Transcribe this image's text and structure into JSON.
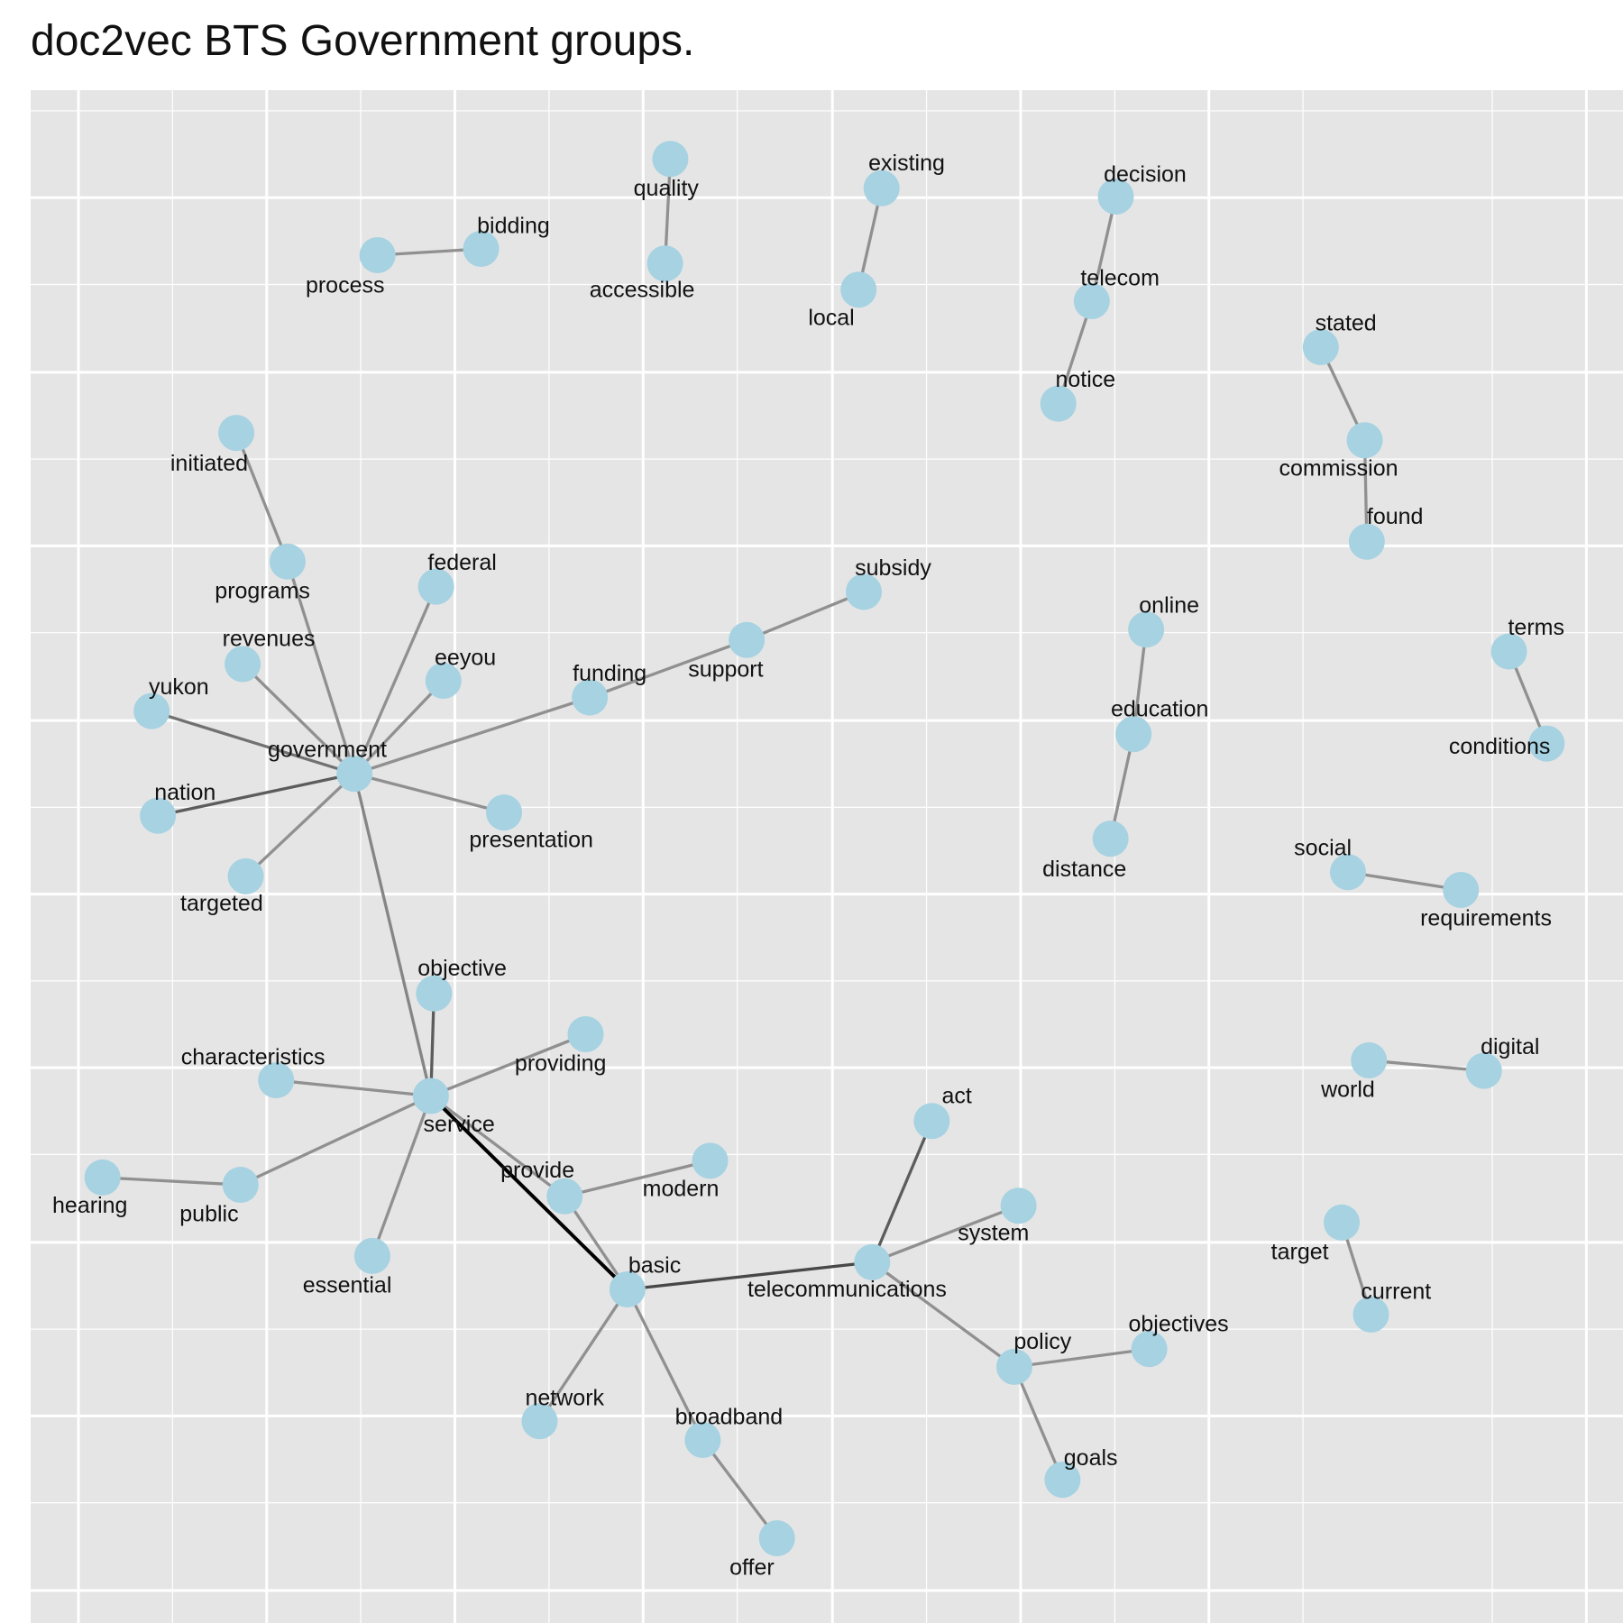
{
  "title": "doc2vec BTS Government groups.",
  "colors": {
    "panel": "#e5e5e5",
    "grid": "#ffffff",
    "node": "#a6d2e2",
    "label": "#111111"
  },
  "nodes": [
    {
      "id": "quality",
      "label": "quality"
    },
    {
      "id": "accessible",
      "label": "accessible"
    },
    {
      "id": "bidding",
      "label": "bidding"
    },
    {
      "id": "process",
      "label": "process"
    },
    {
      "id": "existing",
      "label": "existing"
    },
    {
      "id": "local",
      "label": "local"
    },
    {
      "id": "decision",
      "label": "decision"
    },
    {
      "id": "telecom",
      "label": "telecom"
    },
    {
      "id": "notice",
      "label": "notice"
    },
    {
      "id": "stated",
      "label": "stated"
    },
    {
      "id": "commission",
      "label": "commission"
    },
    {
      "id": "found",
      "label": "found"
    },
    {
      "id": "initiated",
      "label": "initiated"
    },
    {
      "id": "programs",
      "label": "programs"
    },
    {
      "id": "federal",
      "label": "federal"
    },
    {
      "id": "revenues",
      "label": "revenues"
    },
    {
      "id": "eeyou",
      "label": "eeyou"
    },
    {
      "id": "yukon",
      "label": "yukon"
    },
    {
      "id": "government",
      "label": "government"
    },
    {
      "id": "funding",
      "label": "funding"
    },
    {
      "id": "support",
      "label": "support"
    },
    {
      "id": "subsidy",
      "label": "subsidy"
    },
    {
      "id": "nation",
      "label": "nation"
    },
    {
      "id": "presentation",
      "label": "presentation"
    },
    {
      "id": "targeted",
      "label": "targeted"
    },
    {
      "id": "online",
      "label": "online"
    },
    {
      "id": "education",
      "label": "education"
    },
    {
      "id": "distance",
      "label": "distance"
    },
    {
      "id": "terms",
      "label": "terms"
    },
    {
      "id": "conditions",
      "label": "conditions"
    },
    {
      "id": "social",
      "label": "social"
    },
    {
      "id": "requirements",
      "label": "requirements"
    },
    {
      "id": "objective",
      "label": "objective"
    },
    {
      "id": "providing",
      "label": "providing"
    },
    {
      "id": "characteristics",
      "label": "characteristics"
    },
    {
      "id": "service",
      "label": "service"
    },
    {
      "id": "world",
      "label": "world"
    },
    {
      "id": "digital",
      "label": "digital"
    },
    {
      "id": "hearing",
      "label": "hearing"
    },
    {
      "id": "public",
      "label": "public"
    },
    {
      "id": "provide",
      "label": "provide"
    },
    {
      "id": "modern",
      "label": "modern"
    },
    {
      "id": "act",
      "label": "act"
    },
    {
      "id": "system",
      "label": "system"
    },
    {
      "id": "target",
      "label": "target"
    },
    {
      "id": "essential",
      "label": "essential"
    },
    {
      "id": "basic",
      "label": "basic"
    },
    {
      "id": "telecommunications",
      "label": "telecommunications"
    },
    {
      "id": "current",
      "label": "current"
    },
    {
      "id": "policy",
      "label": "policy"
    },
    {
      "id": "objectives",
      "label": "objectives"
    },
    {
      "id": "network",
      "label": "network"
    },
    {
      "id": "broadband",
      "label": "broadband"
    },
    {
      "id": "goals",
      "label": "goals"
    },
    {
      "id": "offer",
      "label": "offer"
    }
  ],
  "edges": [
    {
      "source": "quality",
      "target": "accessible",
      "weight": 0.3
    },
    {
      "source": "bidding",
      "target": "process",
      "weight": 0.3
    },
    {
      "source": "existing",
      "target": "local",
      "weight": 0.3
    },
    {
      "source": "decision",
      "target": "telecom",
      "weight": 0.3
    },
    {
      "source": "telecom",
      "target": "notice",
      "weight": 0.3
    },
    {
      "source": "stated",
      "target": "commission",
      "weight": 0.3
    },
    {
      "source": "commission",
      "target": "found",
      "weight": 0.3
    },
    {
      "source": "initiated",
      "target": "programs",
      "weight": 0.3
    },
    {
      "source": "programs",
      "target": "government",
      "weight": 0.3
    },
    {
      "source": "federal",
      "target": "government",
      "weight": 0.3
    },
    {
      "source": "revenues",
      "target": "government",
      "weight": 0.3
    },
    {
      "source": "eeyou",
      "target": "government",
      "weight": 0.3
    },
    {
      "source": "yukon",
      "target": "government",
      "weight": 0.45
    },
    {
      "source": "funding",
      "target": "government",
      "weight": 0.3
    },
    {
      "source": "funding",
      "target": "support",
      "weight": 0.3
    },
    {
      "source": "support",
      "target": "subsidy",
      "weight": 0.3
    },
    {
      "source": "nation",
      "target": "government",
      "weight": 0.55
    },
    {
      "source": "presentation",
      "target": "government",
      "weight": 0.3
    },
    {
      "source": "targeted",
      "target": "government",
      "weight": 0.3
    },
    {
      "source": "government",
      "target": "service",
      "weight": 0.35
    },
    {
      "source": "online",
      "target": "education",
      "weight": 0.3
    },
    {
      "source": "education",
      "target": "distance",
      "weight": 0.3
    },
    {
      "source": "terms",
      "target": "conditions",
      "weight": 0.3
    },
    {
      "source": "social",
      "target": "requirements",
      "weight": 0.3
    },
    {
      "source": "objective",
      "target": "service",
      "weight": 0.55
    },
    {
      "source": "providing",
      "target": "service",
      "weight": 0.3
    },
    {
      "source": "characteristics",
      "target": "service",
      "weight": 0.3
    },
    {
      "source": "public",
      "target": "service",
      "weight": 0.3
    },
    {
      "source": "hearing",
      "target": "public",
      "weight": 0.3
    },
    {
      "source": "essential",
      "target": "service",
      "weight": 0.3
    },
    {
      "source": "provide",
      "target": "service",
      "weight": 0.3
    },
    {
      "source": "provide",
      "target": "modern",
      "weight": 0.3
    },
    {
      "source": "provide",
      "target": "basic",
      "weight": 0.3
    },
    {
      "source": "service",
      "target": "basic",
      "weight": 1.0
    },
    {
      "source": "world",
      "target": "digital",
      "weight": 0.3
    },
    {
      "source": "basic",
      "target": "telecommunications",
      "weight": 0.65
    },
    {
      "source": "act",
      "target": "telecommunications",
      "weight": 0.55
    },
    {
      "source": "system",
      "target": "telecommunications",
      "weight": 0.3
    },
    {
      "source": "telecommunications",
      "target": "policy",
      "weight": 0.3
    },
    {
      "source": "policy",
      "target": "objectives",
      "weight": 0.3
    },
    {
      "source": "policy",
      "target": "goals",
      "weight": 0.3
    },
    {
      "source": "target",
      "target": "current",
      "weight": 0.3
    },
    {
      "source": "basic",
      "target": "network",
      "weight": 0.3
    },
    {
      "source": "basic",
      "target": "broadband",
      "weight": 0.3
    },
    {
      "source": "broadband",
      "target": "offer",
      "weight": 0.3
    }
  ]
}
